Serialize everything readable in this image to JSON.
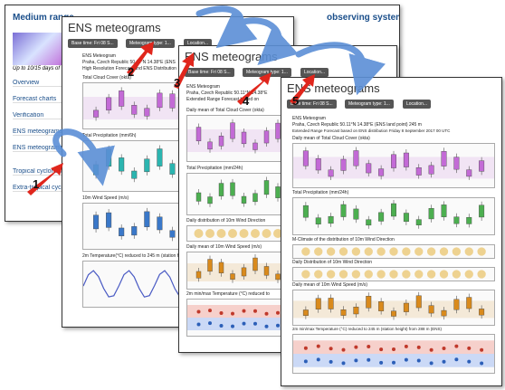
{
  "window1": {
    "title": "Medium range",
    "subtitle": "Up to 10/15 days of",
    "right_title": "observing system",
    "nav": [
      "Overview",
      "Forecast charts",
      "Verification",
      "ENS meteograms",
      "ENS meteograms",
      "Tropical cyclones",
      "Extra-tropical cyclo"
    ]
  },
  "window2": {
    "title": "ENS meteograms",
    "buttons": [
      "Base time: Fri 08 S...",
      "Meteogram type: 1...",
      "Location..."
    ],
    "heading": "ENS Meteogram",
    "location": "Praha, Czech Republic 50.11°N 14.38°E (ENS",
    "subheading": "High Resolution Forecast and ENS Distribution",
    "panels": [
      "Total Cloud Cover (okta)",
      "Total Precipitation (mm/6h)",
      "10m Wind Speed (m/s)",
      "2m Temperature(°C) reduced to 245 m (station height"
    ]
  },
  "window3": {
    "title": "ENS meteograms",
    "buttons": [
      "Base time: Fri 08 S...",
      "Meteogram type: 1...",
      "Location..."
    ],
    "heading": "ENS Meteogram",
    "location": "Praha, Czech Republic 50.11°N 14.38°E",
    "subheading": "Extended Range Forecast based on",
    "panels": [
      "Daily mean of Total Cloud Cover (okta)",
      "Total Precipitation (mm/24h)",
      "Daily distribution of 10m Wind Direction",
      "Daily mean of 10m Wind Speed (m/s)",
      "2m min/max Temperature (°C) reduced to"
    ]
  },
  "window4": {
    "title": "ENS meteograms",
    "buttons": [
      "Base time: Fri 08 S...",
      "Meteogram type: 1...",
      "Location..."
    ],
    "heading": "ENS Meteogram",
    "location": "Praha, Czech Republic 50.11°N 14.38°E (ENS land point) 245 m",
    "subheading": "Extended Range Forecast based on ENS distribution Friday  8 September 2017 00 UTC",
    "panels": [
      "Daily mean of Total Cloud Cover (okta)",
      "Total Precipitation (mm/24h)",
      "M-Climate of the distribution of 10m Wind Direction",
      "Daily Distribution of 10m Wind Direction",
      "Daily mean of 10m Wind Speed (m/s)",
      "2m min/max Temperature (°C) reduced to 245 m (station height) from 288 m (ENS)"
    ]
  },
  "steps": [
    "1",
    "2",
    "3",
    "4",
    "5"
  ]
}
